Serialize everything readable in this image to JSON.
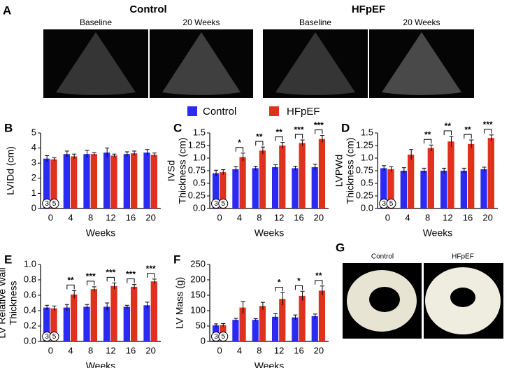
{
  "panel_a": {
    "letter": "A",
    "groups": [
      {
        "title": "Control",
        "labels": [
          "Baseline",
          "20 Weeks"
        ]
      },
      {
        "title": "HFpEF",
        "labels": [
          "Baseline",
          "20 Weeks"
        ]
      }
    ]
  },
  "chart_data": [
    {
      "type": "bar",
      "letter": "B",
      "ylabel": [
        "LVIDd (cm)"
      ],
      "xlabel": "Weeks",
      "categories": [
        "0",
        "4",
        "8",
        "12",
        "16",
        "20"
      ],
      "series": [
        {
          "name": "Control",
          "color": "#2a2af2",
          "values": [
            3.3,
            3.6,
            3.6,
            3.7,
            3.6,
            3.7
          ],
          "errors": [
            0.2,
            0.2,
            0.25,
            0.3,
            0.15,
            0.2
          ]
        },
        {
          "name": "HFpEF",
          "color": "#e0301e",
          "values": [
            3.25,
            3.45,
            3.6,
            3.5,
            3.65,
            3.55
          ],
          "errors": [
            0.1,
            0.15,
            0.1,
            0.1,
            0.15,
            0.12
          ]
        }
      ],
      "ylim": [
        0,
        5
      ],
      "yticks": [
        0,
        1,
        2,
        3,
        4,
        5
      ],
      "n": [
        3,
        5
      ],
      "significance": [
        null,
        null,
        null,
        null,
        null,
        null
      ]
    },
    {
      "type": "bar",
      "letter": "C",
      "ylabel": [
        "IVSd",
        "Thickness (cm)"
      ],
      "xlabel": "Weeks",
      "categories": [
        "0",
        "4",
        "8",
        "12",
        "16",
        "20"
      ],
      "series": [
        {
          "name": "Control",
          "color": "#2a2af2",
          "values": [
            0.7,
            0.78,
            0.8,
            0.82,
            0.8,
            0.82
          ],
          "errors": [
            0.06,
            0.05,
            0.04,
            0.05,
            0.04,
            0.06
          ]
        },
        {
          "name": "HFpEF",
          "color": "#e0301e",
          "values": [
            0.72,
            1.02,
            1.15,
            1.25,
            1.3,
            1.38
          ],
          "errors": [
            0.05,
            0.08,
            0.07,
            0.06,
            0.06,
            0.07
          ]
        }
      ],
      "ylim": [
        0,
        1.5
      ],
      "yticks": [
        {
          "value": 0,
          "label": "0.0"
        },
        0.25,
        0.5,
        0.75,
        {
          "value": 1,
          "label": "1.0"
        },
        1.25,
        1.5
      ],
      "n": [
        3,
        5
      ],
      "significance": [
        null,
        "*",
        "**",
        "**",
        "***",
        "***"
      ]
    },
    {
      "type": "bar",
      "letter": "D",
      "ylabel": [
        "LVPWd",
        "Thickness (cm)"
      ],
      "xlabel": "Weeks",
      "categories": [
        "0",
        "4",
        "8",
        "12",
        "16",
        "20"
      ],
      "series": [
        {
          "name": "Control",
          "color": "#2a2af2",
          "values": [
            0.8,
            0.75,
            0.75,
            0.75,
            0.75,
            0.78
          ],
          "errors": [
            0.05,
            0.06,
            0.05,
            0.05,
            0.05,
            0.04
          ]
        },
        {
          "name": "HFpEF",
          "color": "#e0301e",
          "values": [
            0.78,
            1.07,
            1.2,
            1.33,
            1.28,
            1.4
          ],
          "errors": [
            0.05,
            0.1,
            0.06,
            0.1,
            0.08,
            0.06
          ]
        }
      ],
      "ylim": [
        0,
        1.5
      ],
      "yticks": [
        {
          "value": 0,
          "label": "0.0"
        },
        0.25,
        0.5,
        0.75,
        {
          "value": 1,
          "label": "1.0"
        },
        1.25,
        1.5
      ],
      "n": [
        3,
        5
      ],
      "significance": [
        null,
        null,
        "**",
        "**",
        "**",
        "***"
      ]
    },
    {
      "type": "bar",
      "letter": "E",
      "ylabel": [
        "LV Relative Wall",
        "Thickness"
      ],
      "xlabel": "Weeks",
      "categories": [
        "0",
        "4",
        "8",
        "12",
        "16",
        "20"
      ],
      "series": [
        {
          "name": "Control",
          "color": "#2a2af2",
          "values": [
            0.44,
            0.44,
            0.45,
            0.45,
            0.45,
            0.47
          ],
          "errors": [
            0.03,
            0.04,
            0.03,
            0.05,
            0.02,
            0.04
          ]
        },
        {
          "name": "HFpEF",
          "color": "#e0301e",
          "values": [
            0.43,
            0.61,
            0.68,
            0.72,
            0.71,
            0.78
          ],
          "errors": [
            0.03,
            0.05,
            0.03,
            0.04,
            0.03,
            0.03
          ]
        }
      ],
      "ylim": [
        0,
        1
      ],
      "yticks": [
        {
          "value": 0,
          "label": "0.0"
        },
        0.2,
        0.4,
        0.6,
        0.8,
        {
          "value": 1,
          "label": "1.0"
        }
      ],
      "n": [
        3,
        5
      ],
      "significance": [
        null,
        "**",
        "***",
        "***",
        "***",
        "***"
      ]
    },
    {
      "type": "bar",
      "letter": "F",
      "ylabel": [
        "LV Mass (g)"
      ],
      "xlabel": "Weeks",
      "categories": [
        "0",
        "4",
        "8",
        "12",
        "16",
        "20"
      ],
      "series": [
        {
          "name": "Control",
          "color": "#2a2af2",
          "values": [
            52,
            70,
            70,
            80,
            78,
            82
          ],
          "errors": [
            5,
            5,
            4,
            10,
            8,
            7
          ]
        },
        {
          "name": "HFpEF",
          "color": "#e0301e",
          "values": [
            53,
            110,
            115,
            138,
            148,
            165
          ],
          "errors": [
            5,
            20,
            12,
            20,
            15,
            15
          ]
        }
      ],
      "ylim": [
        0,
        250
      ],
      "yticks": [
        0,
        50,
        100,
        150,
        200,
        250
      ],
      "n": [
        3,
        5
      ],
      "significance": [
        null,
        null,
        null,
        "*",
        "*",
        "**"
      ]
    }
  ],
  "panel_g": {
    "letter": "G",
    "labels": [
      "Control",
      "HFpEF"
    ]
  }
}
